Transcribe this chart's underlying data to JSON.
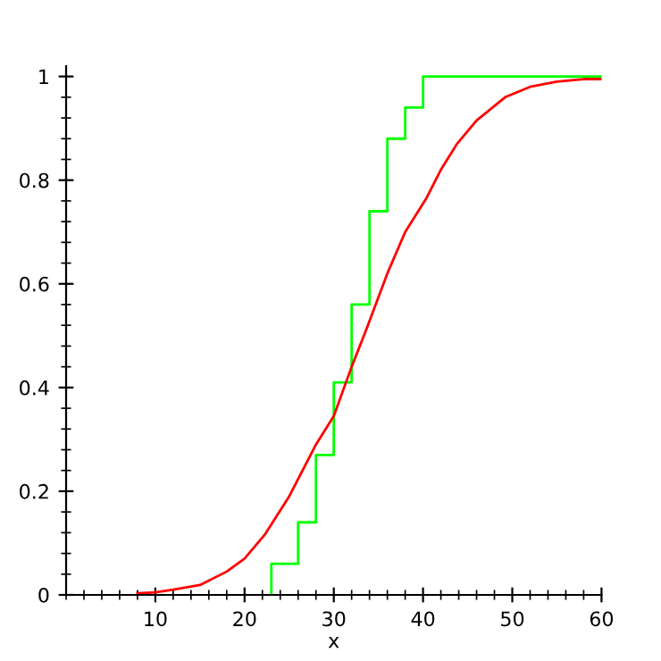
{
  "chart_data": {
    "type": "line",
    "xlabel": "x",
    "xlim": [
      0,
      60
    ],
    "ylim": [
      0,
      1.02
    ],
    "xticks": [
      10,
      20,
      30,
      40,
      50,
      60
    ],
    "yticks": [
      0,
      0.2,
      0.4,
      0.6,
      0.8,
      1
    ],
    "grid": false,
    "series": [
      {
        "type": "step",
        "color": "#00ff00",
        "x": [
          23,
          23,
          26,
          28,
          30,
          32,
          34,
          36,
          38,
          40,
          60
        ],
        "values": [
          0,
          0.06,
          0.14,
          0.27,
          0.41,
          0.56,
          0.74,
          0.88,
          0.94,
          1,
          1
        ]
      },
      {
        "color": "#ff0000",
        "x": [
          8,
          10,
          12,
          15,
          18,
          20,
          22.3,
          25,
          28,
          30,
          32,
          33.6,
          36,
          38,
          40.4,
          42,
          43.8,
          46,
          49.2,
          52,
          55,
          58,
          60
        ],
        "values": [
          0.003,
          0.005,
          0.01,
          0.019,
          0.045,
          0.07,
          0.117,
          0.19,
          0.29,
          0.345,
          0.44,
          0.51,
          0.62,
          0.7,
          0.766,
          0.82,
          0.87,
          0.915,
          0.96,
          0.98,
          0.99,
          0.995,
          0.995
        ]
      }
    ]
  }
}
